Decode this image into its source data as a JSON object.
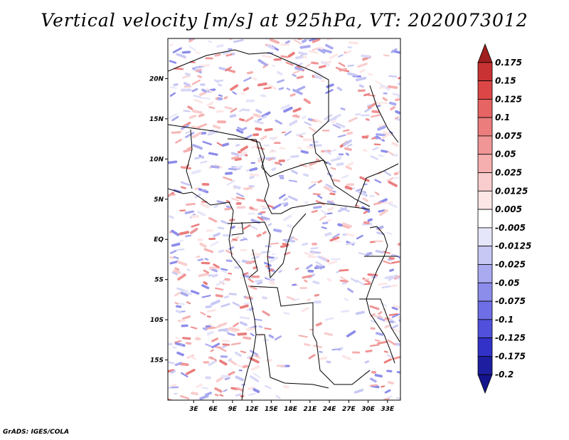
{
  "title": "Vertical velocity [m/s] at 925hPa, VT: 2020073012",
  "footer": "GrADS: IGES/COLA",
  "map": {
    "lon_range": [
      -1,
      35
    ],
    "lat_range": [
      -20,
      25
    ],
    "lat_ticks": [
      "20N",
      "15N",
      "10N",
      "5N",
      "EQ",
      "5S",
      "10S",
      "15S"
    ],
    "lat_tick_values": [
      20,
      15,
      10,
      5,
      0,
      -5,
      -10,
      -15
    ],
    "lon_ticks": [
      "3E",
      "6E",
      "9E",
      "12E",
      "15E",
      "18E",
      "21E",
      "24E",
      "27E",
      "30E",
      "33E"
    ],
    "lon_tick_values": [
      3,
      6,
      9,
      12,
      15,
      18,
      21,
      24,
      27,
      30,
      33
    ]
  },
  "colorbar": {
    "labels": [
      "0.175",
      "0.15",
      "0.125",
      "0.1",
      "0.075",
      "0.05",
      "0.025",
      "0.0125",
      "0.005",
      "-0.005",
      "-0.0125",
      "-0.025",
      "-0.05",
      "-0.075",
      "-0.1",
      "-0.125",
      "-0.175",
      "-0.2"
    ],
    "colors": [
      "#a01e1e",
      "#c83232",
      "#dc4646",
      "#e66464",
      "#eb7d7d",
      "#f09696",
      "#f5afaf",
      "#f9cdcd",
      "#fde6e6",
      "#ffffff",
      "#e6e6fa",
      "#c8c8f5",
      "#aaaaf0",
      "#8c8ceb",
      "#6e6ee6",
      "#5050dc",
      "#3232c8",
      "#1e1ea0",
      "#14148c"
    ]
  }
}
